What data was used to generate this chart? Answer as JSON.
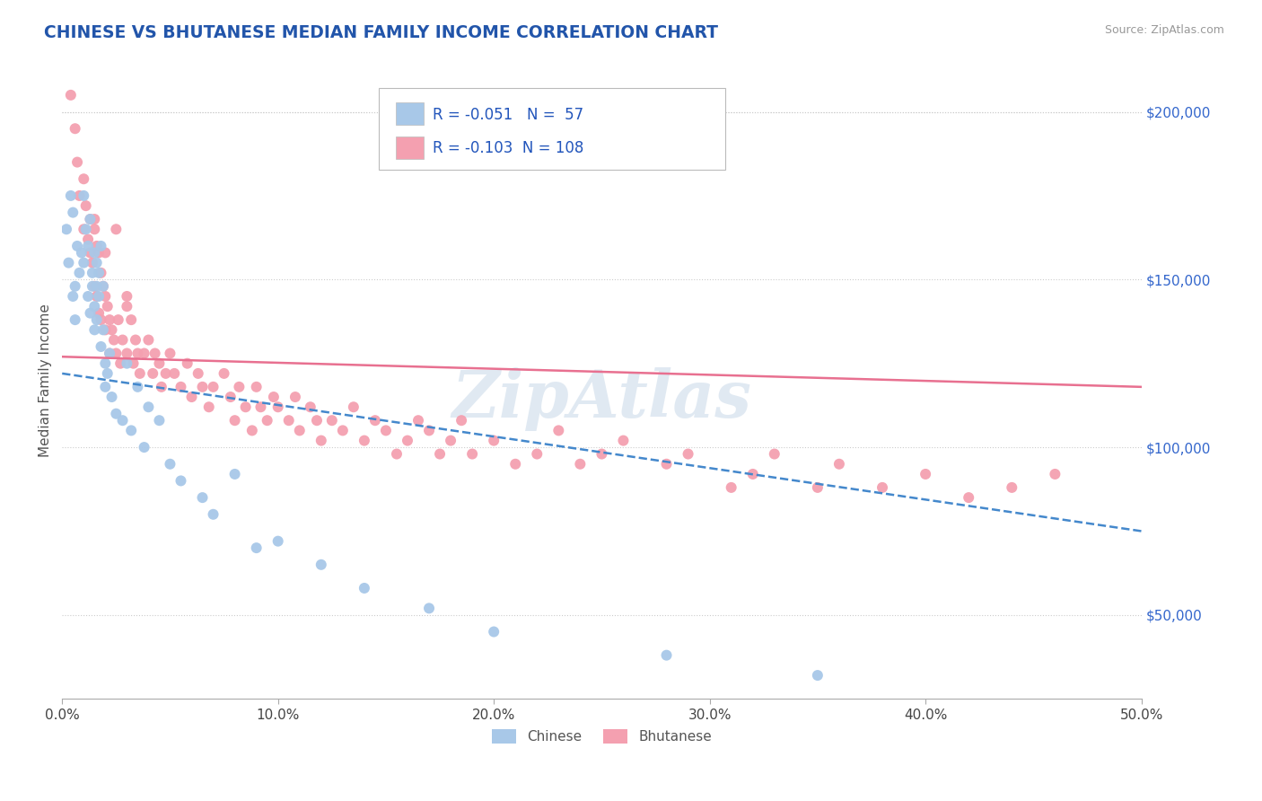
{
  "title": "CHINESE VS BHUTANESE MEDIAN FAMILY INCOME CORRELATION CHART",
  "source": "Source: ZipAtlas.com",
  "ylabel": "Median Family Income",
  "xlim": [
    0.0,
    0.5
  ],
  "ylim": [
    25000,
    215000
  ],
  "xtick_labels": [
    "0.0%",
    "10.0%",
    "20.0%",
    "30.0%",
    "40.0%",
    "50.0%"
  ],
  "xtick_vals": [
    0.0,
    0.1,
    0.2,
    0.3,
    0.4,
    0.5
  ],
  "ytick_labels": [
    "$50,000",
    "$100,000",
    "$150,000",
    "$200,000"
  ],
  "ytick_vals": [
    50000,
    100000,
    150000,
    200000
  ],
  "chinese_R": "-0.051",
  "chinese_N": "57",
  "bhutanese_R": "-0.103",
  "bhutanese_N": "108",
  "chinese_color": "#a8c8e8",
  "bhutanese_color": "#f4a0b0",
  "chinese_line_color": "#4488cc",
  "bhutanese_line_color": "#e87090",
  "watermark": "ZipAtlas",
  "legend_labels": [
    "Chinese",
    "Bhutanese"
  ],
  "chinese_scatter_x": [
    0.002,
    0.004,
    0.003,
    0.005,
    0.006,
    0.007,
    0.005,
    0.008,
    0.006,
    0.009,
    0.01,
    0.01,
    0.011,
    0.012,
    0.012,
    0.013,
    0.014,
    0.013,
    0.015,
    0.014,
    0.015,
    0.016,
    0.015,
    0.016,
    0.017,
    0.016,
    0.017,
    0.018,
    0.018,
    0.019,
    0.02,
    0.019,
    0.02,
    0.022,
    0.021,
    0.023,
    0.025,
    0.03,
    0.028,
    0.035,
    0.032,
    0.04,
    0.038,
    0.045,
    0.05,
    0.055,
    0.065,
    0.07,
    0.08,
    0.09,
    0.1,
    0.12,
    0.14,
    0.17,
    0.2,
    0.28,
    0.35
  ],
  "chinese_scatter_y": [
    165000,
    175000,
    155000,
    170000,
    148000,
    160000,
    145000,
    152000,
    138000,
    158000,
    175000,
    155000,
    165000,
    160000,
    145000,
    168000,
    152000,
    140000,
    158000,
    148000,
    142000,
    155000,
    135000,
    148000,
    152000,
    138000,
    145000,
    160000,
    130000,
    148000,
    125000,
    135000,
    118000,
    128000,
    122000,
    115000,
    110000,
    125000,
    108000,
    118000,
    105000,
    112000,
    100000,
    108000,
    95000,
    90000,
    85000,
    80000,
    92000,
    70000,
    72000,
    65000,
    58000,
    52000,
    45000,
    38000,
    32000
  ],
  "bhutanese_scatter_x": [
    0.004,
    0.006,
    0.007,
    0.008,
    0.01,
    0.01,
    0.011,
    0.012,
    0.013,
    0.013,
    0.014,
    0.015,
    0.015,
    0.016,
    0.016,
    0.017,
    0.017,
    0.018,
    0.018,
    0.019,
    0.02,
    0.02,
    0.021,
    0.022,
    0.022,
    0.023,
    0.024,
    0.025,
    0.026,
    0.027,
    0.028,
    0.03,
    0.03,
    0.032,
    0.033,
    0.034,
    0.035,
    0.036,
    0.038,
    0.04,
    0.042,
    0.043,
    0.045,
    0.046,
    0.048,
    0.05,
    0.052,
    0.055,
    0.058,
    0.06,
    0.063,
    0.065,
    0.068,
    0.07,
    0.075,
    0.078,
    0.08,
    0.082,
    0.085,
    0.088,
    0.09,
    0.092,
    0.095,
    0.098,
    0.1,
    0.105,
    0.108,
    0.11,
    0.115,
    0.118,
    0.12,
    0.125,
    0.13,
    0.135,
    0.14,
    0.145,
    0.15,
    0.155,
    0.16,
    0.165,
    0.17,
    0.175,
    0.18,
    0.185,
    0.19,
    0.2,
    0.21,
    0.22,
    0.23,
    0.24,
    0.25,
    0.26,
    0.28,
    0.29,
    0.31,
    0.32,
    0.33,
    0.35,
    0.36,
    0.38,
    0.4,
    0.42,
    0.44,
    0.46,
    0.02,
    0.015,
    0.025,
    0.03
  ],
  "bhutanese_scatter_y": [
    205000,
    195000,
    185000,
    175000,
    180000,
    165000,
    172000,
    162000,
    168000,
    158000,
    155000,
    165000,
    148000,
    160000,
    145000,
    158000,
    140000,
    152000,
    138000,
    148000,
    145000,
    135000,
    142000,
    138000,
    128000,
    135000,
    132000,
    128000,
    138000,
    125000,
    132000,
    142000,
    128000,
    138000,
    125000,
    132000,
    128000,
    122000,
    128000,
    132000,
    122000,
    128000,
    125000,
    118000,
    122000,
    128000,
    122000,
    118000,
    125000,
    115000,
    122000,
    118000,
    112000,
    118000,
    122000,
    115000,
    108000,
    118000,
    112000,
    105000,
    118000,
    112000,
    108000,
    115000,
    112000,
    108000,
    115000,
    105000,
    112000,
    108000,
    102000,
    108000,
    105000,
    112000,
    102000,
    108000,
    105000,
    98000,
    102000,
    108000,
    105000,
    98000,
    102000,
    108000,
    98000,
    102000,
    95000,
    98000,
    105000,
    95000,
    98000,
    102000,
    95000,
    98000,
    88000,
    92000,
    98000,
    88000,
    95000,
    88000,
    92000,
    85000,
    88000,
    92000,
    158000,
    168000,
    165000,
    145000
  ],
  "chinese_line_x0": 0.0,
  "chinese_line_x1": 0.5,
  "chinese_line_y0": 122000,
  "chinese_line_y1": 75000,
  "bhutanese_line_x0": 0.0,
  "bhutanese_line_x1": 0.5,
  "bhutanese_line_y0": 127000,
  "bhutanese_line_y1": 118000
}
